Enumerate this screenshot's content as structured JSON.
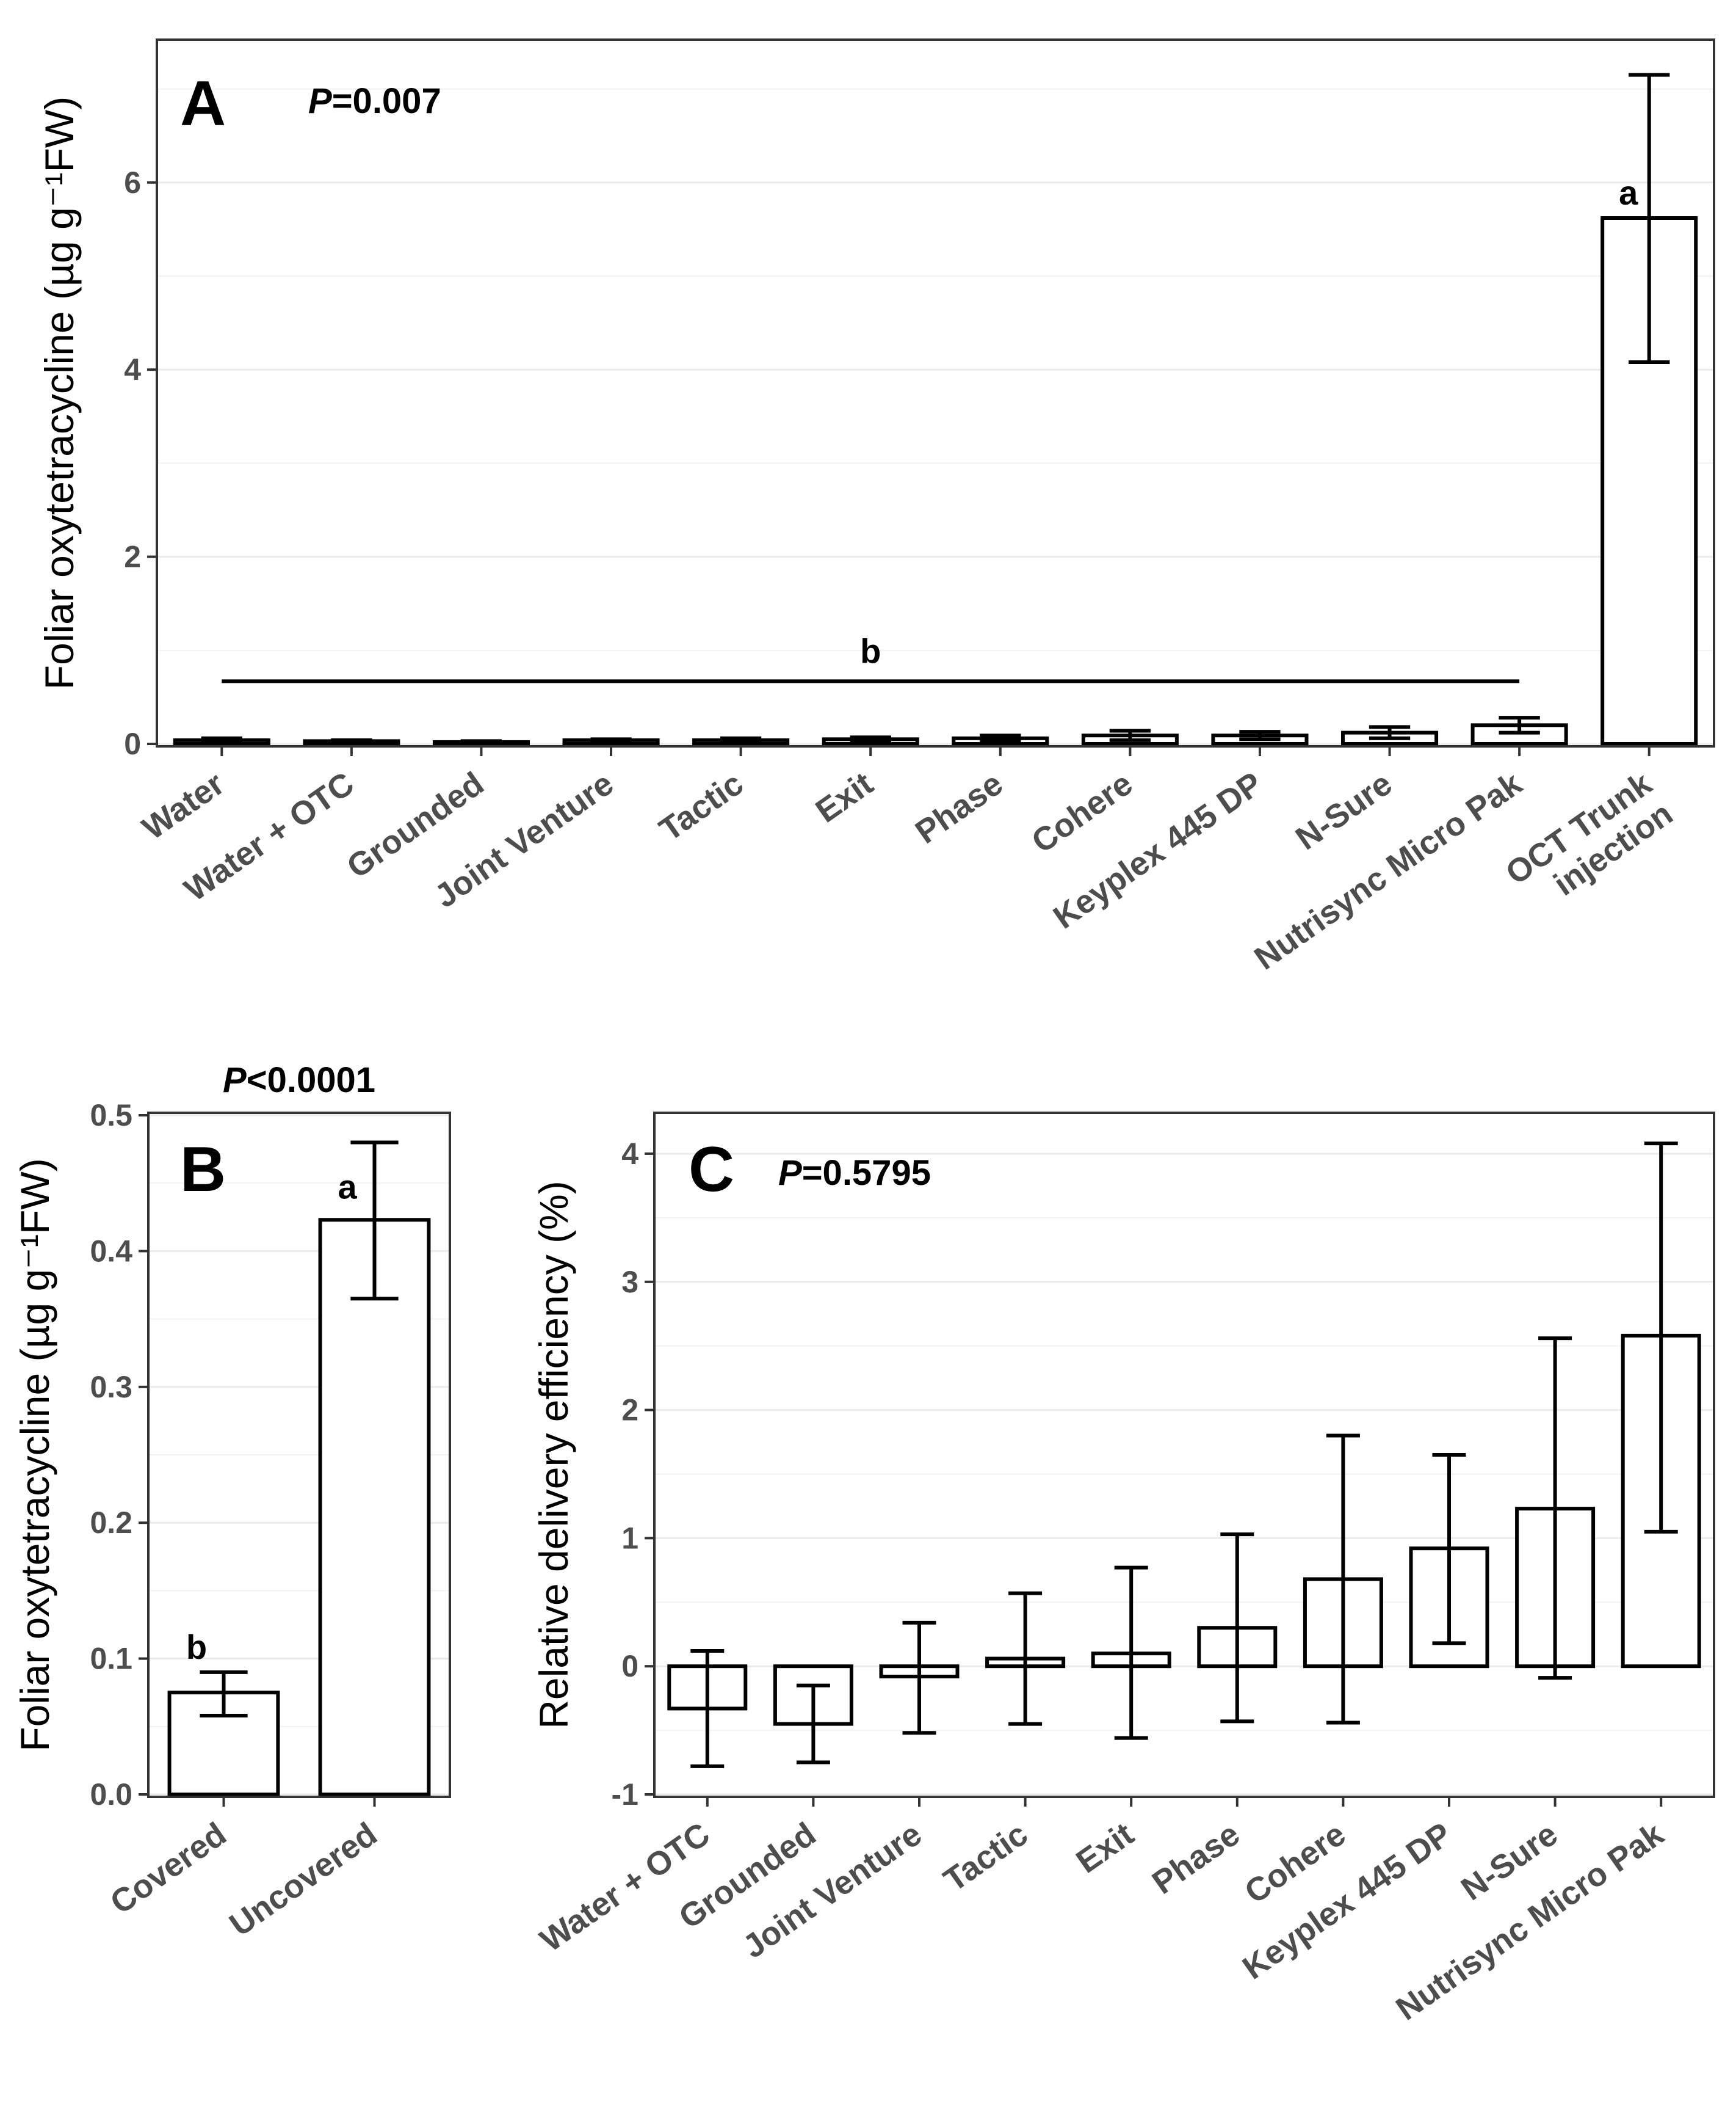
{
  "chart_data": [
    {
      "id": "A",
      "type": "bar",
      "panel_label": "A",
      "p_italic": "P",
      "p_value": "=0.007",
      "ylabel": "Foliar oxytetracycline (µg g⁻¹FW)",
      "xlabel": "",
      "ylim": [
        0,
        7.5
      ],
      "y_ticks": [
        0,
        2,
        4,
        6
      ],
      "y_tick_labels": [
        "0",
        "2",
        "4",
        "6"
      ],
      "categories": [
        "Water",
        "Water + OTC",
        "Grounded",
        "Joint Venture",
        "Tactic",
        "Exit",
        "Phase",
        "Cohere",
        "Keyplex 445 DP",
        "N-Sure",
        "Nutrisync Micro Pak",
        "OCT Trunk injection"
      ],
      "values": [
        0.04,
        0.03,
        0.02,
        0.04,
        0.04,
        0.05,
        0.06,
        0.09,
        0.09,
        0.12,
        0.2,
        5.62
      ],
      "err_low": [
        0.02,
        0.02,
        0.01,
        0.02,
        0.02,
        0.02,
        0.03,
        0.04,
        0.05,
        0.06,
        0.12,
        4.08
      ],
      "err_high": [
        0.06,
        0.04,
        0.03,
        0.05,
        0.06,
        0.07,
        0.09,
        0.14,
        0.13,
        0.18,
        0.28,
        7.15
      ],
      "significance": [
        {
          "label": "a",
          "category": "OCT Trunk injection"
        },
        {
          "label": "b",
          "span_from": "Water",
          "span_to": "Nutrisync Micro Pak",
          "line_y": 0.67
        }
      ]
    },
    {
      "id": "B",
      "type": "bar",
      "panel_label": "B",
      "p_italic": "P",
      "p_value": "<0.0001",
      "ylabel": "Foliar oxytetracycline (µg g⁻¹FW)",
      "xlabel": "",
      "ylim": [
        0,
        0.5
      ],
      "y_ticks": [
        0,
        0.1,
        0.2,
        0.3,
        0.4,
        0.5
      ],
      "y_tick_labels": [
        "0.0",
        "0.1",
        "0.2",
        "0.3",
        "0.4",
        "0.5"
      ],
      "categories": [
        "Covered",
        "Uncovered"
      ],
      "values": [
        0.075,
        0.423
      ],
      "err_low": [
        0.058,
        0.365
      ],
      "err_high": [
        0.09,
        0.48
      ],
      "significance": [
        {
          "label": "b",
          "category": "Covered"
        },
        {
          "label": "a",
          "category": "Uncovered"
        }
      ]
    },
    {
      "id": "C",
      "type": "bar",
      "panel_label": "C",
      "p_italic": "P",
      "p_value": "=0.5795",
      "ylabel": "Relative delivery efficiency (%)",
      "xlabel": "",
      "ylim": [
        -1,
        4.3
      ],
      "y_ticks": [
        -1,
        0,
        1,
        2,
        3,
        4
      ],
      "y_tick_labels": [
        "-1",
        "0",
        "1",
        "2",
        "3",
        "4"
      ],
      "categories": [
        "Water + OTC",
        "Grounded",
        "Joint Venture",
        "Tactic",
        "Exit",
        "Phase",
        "Cohere",
        "Keyplex 445 DP",
        "N-Sure",
        "Nutrisync Micro Pak"
      ],
      "values": [
        -0.33,
        -0.45,
        -0.08,
        0.06,
        0.1,
        0.3,
        0.68,
        0.92,
        1.23,
        2.58
      ],
      "err_low": [
        -0.78,
        -0.75,
        -0.52,
        -0.45,
        -0.56,
        -0.43,
        -0.44,
        0.18,
        -0.09,
        1.05
      ],
      "err_high": [
        0.12,
        -0.15,
        0.34,
        0.57,
        0.77,
        1.03,
        1.8,
        1.65,
        2.56,
        4.08
      ],
      "significance": []
    }
  ]
}
